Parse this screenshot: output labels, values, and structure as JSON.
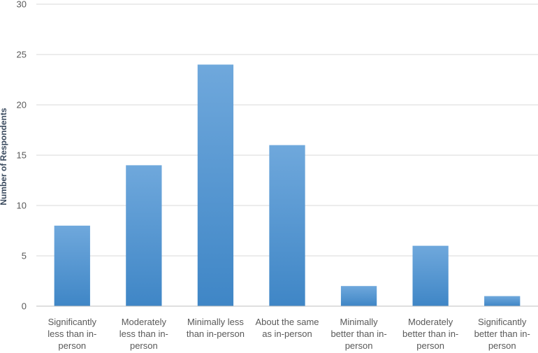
{
  "chart_data": {
    "type": "bar",
    "title": "",
    "xlabel": "",
    "ylabel": "Number of Respondents",
    "categories": [
      [
        "Significantly",
        "less than in-",
        "person"
      ],
      [
        "Moderately",
        "less than in-",
        "person"
      ],
      [
        "Minimally less",
        "than in-person"
      ],
      [
        "About the same",
        "as in-person"
      ],
      [
        "Minimally",
        "better than in-",
        "person"
      ],
      [
        "Moderately",
        "better than in-",
        "person"
      ],
      [
        "Significantly",
        "better than in-",
        "person"
      ]
    ],
    "values": [
      8,
      14,
      24,
      16,
      2,
      6,
      1
    ],
    "ylim": [
      0,
      30
    ],
    "yticks": [
      0,
      5,
      10,
      15,
      20,
      25,
      30
    ],
    "grid": true,
    "legend": "none",
    "colors": {
      "bar_top": "#6fa8dc",
      "bar_bottom": "#3f86c6"
    }
  }
}
